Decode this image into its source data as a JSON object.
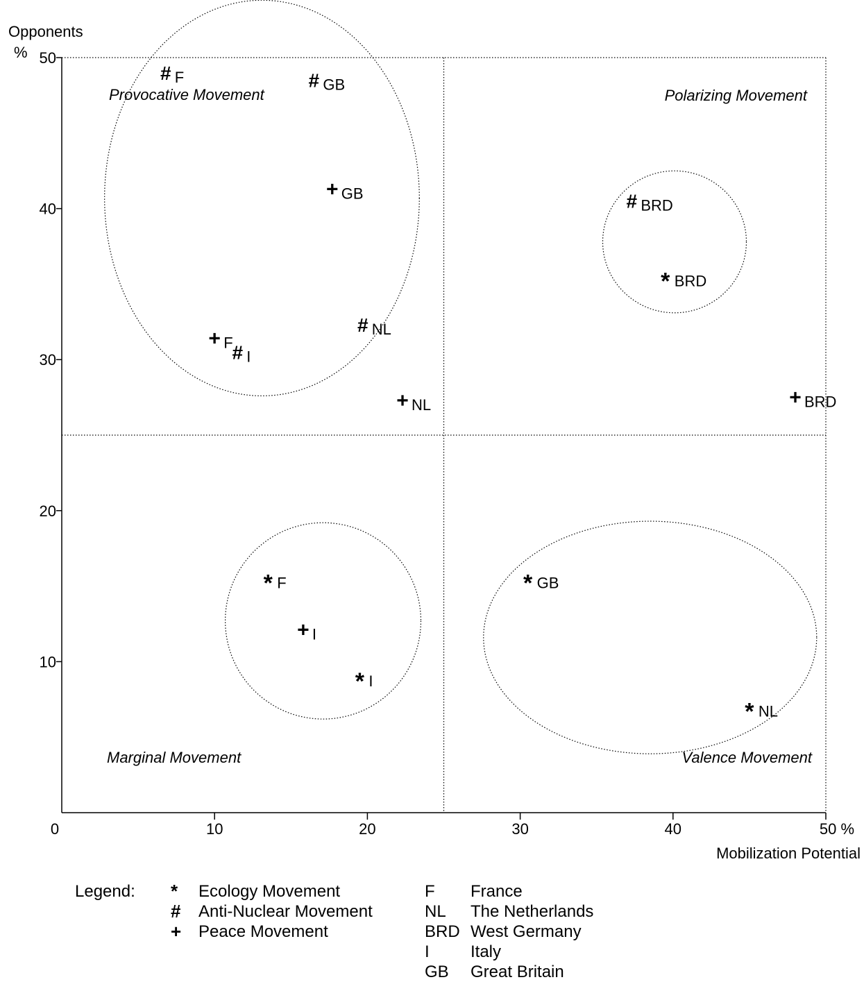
{
  "chart_data": {
    "type": "scatter",
    "ylabel_line1": "Opponents",
    "ylabel_line2": "%",
    "xlabel": "Mobilization Potential",
    "xlim": [
      0,
      50
    ],
    "ylim": [
      0,
      50
    ],
    "xticks": [
      "0",
      "10",
      "20",
      "30",
      "40",
      "50 %"
    ],
    "yticks": [
      "10",
      "20",
      "30",
      "40",
      "50"
    ],
    "divider_x": 25,
    "divider_y": 25,
    "quadrant_labels": {
      "top_left": "Provocative Movement",
      "top_right": "Polarizing Movement",
      "bottom_left": "Marginal Movement",
      "bottom_right": "Valence Movement"
    },
    "series": [
      {
        "name": "Ecology Movement",
        "symbol": "*",
        "points": [
          {
            "label": "F",
            "x": 13.5,
            "y": 15.5
          },
          {
            "label": "I",
            "x": 19.5,
            "y": 9.0
          },
          {
            "label": "GB",
            "x": 30.5,
            "y": 15.5
          },
          {
            "label": "NL",
            "x": 45,
            "y": 7.0
          },
          {
            "label": "BRD",
            "x": 39.5,
            "y": 35.5
          }
        ]
      },
      {
        "name": "Anti-Nuclear Movement",
        "symbol": "#",
        "points": [
          {
            "label": "F",
            "x": 6.8,
            "y": 49
          },
          {
            "label": "GB",
            "x": 16.5,
            "y": 48.5
          },
          {
            "label": "I",
            "x": 11.5,
            "y": 30.5
          },
          {
            "label": "NL",
            "x": 19.7,
            "y": 32.3
          },
          {
            "label": "BRD",
            "x": 37.3,
            "y": 40.5
          }
        ]
      },
      {
        "name": "Peace Movement",
        "symbol": "+",
        "points": [
          {
            "label": "F",
            "x": 10,
            "y": 31.4
          },
          {
            "label": "GB",
            "x": 17.7,
            "y": 41.3
          },
          {
            "label": "I",
            "x": 15.8,
            "y": 12.1
          },
          {
            "label": "NL",
            "x": 22.3,
            "y": 27.3
          },
          {
            "label": "BRD",
            "x": 48,
            "y": 27.5
          }
        ]
      }
    ],
    "clusters": [
      {
        "cx": 13.1,
        "cy": 40.7,
        "rx": 10.3,
        "ry": 13.1
      },
      {
        "cx": 17.1,
        "cy": 12.7,
        "rx": 6.4,
        "ry": 6.5
      },
      {
        "cx": 40.1,
        "cy": 37.8,
        "rx": 4.7,
        "ry": 4.7
      },
      {
        "cx": 38.5,
        "cy": 11.6,
        "rx": 10.9,
        "ry": 7.7
      }
    ]
  },
  "legend": {
    "title": "Legend:",
    "movements": [
      {
        "symbol": "*",
        "name": "Ecology Movement"
      },
      {
        "symbol": "#",
        "name": "Anti-Nuclear Movement"
      },
      {
        "symbol": "+",
        "name": "Peace Movement"
      }
    ],
    "countries": [
      {
        "code": "F",
        "name": "France"
      },
      {
        "code": "NL",
        "name": "The Netherlands"
      },
      {
        "code": "BRD",
        "name": "West Germany"
      },
      {
        "code": "I",
        "name": "Italy"
      },
      {
        "code": "GB",
        "name": "Great Britain"
      }
    ]
  }
}
